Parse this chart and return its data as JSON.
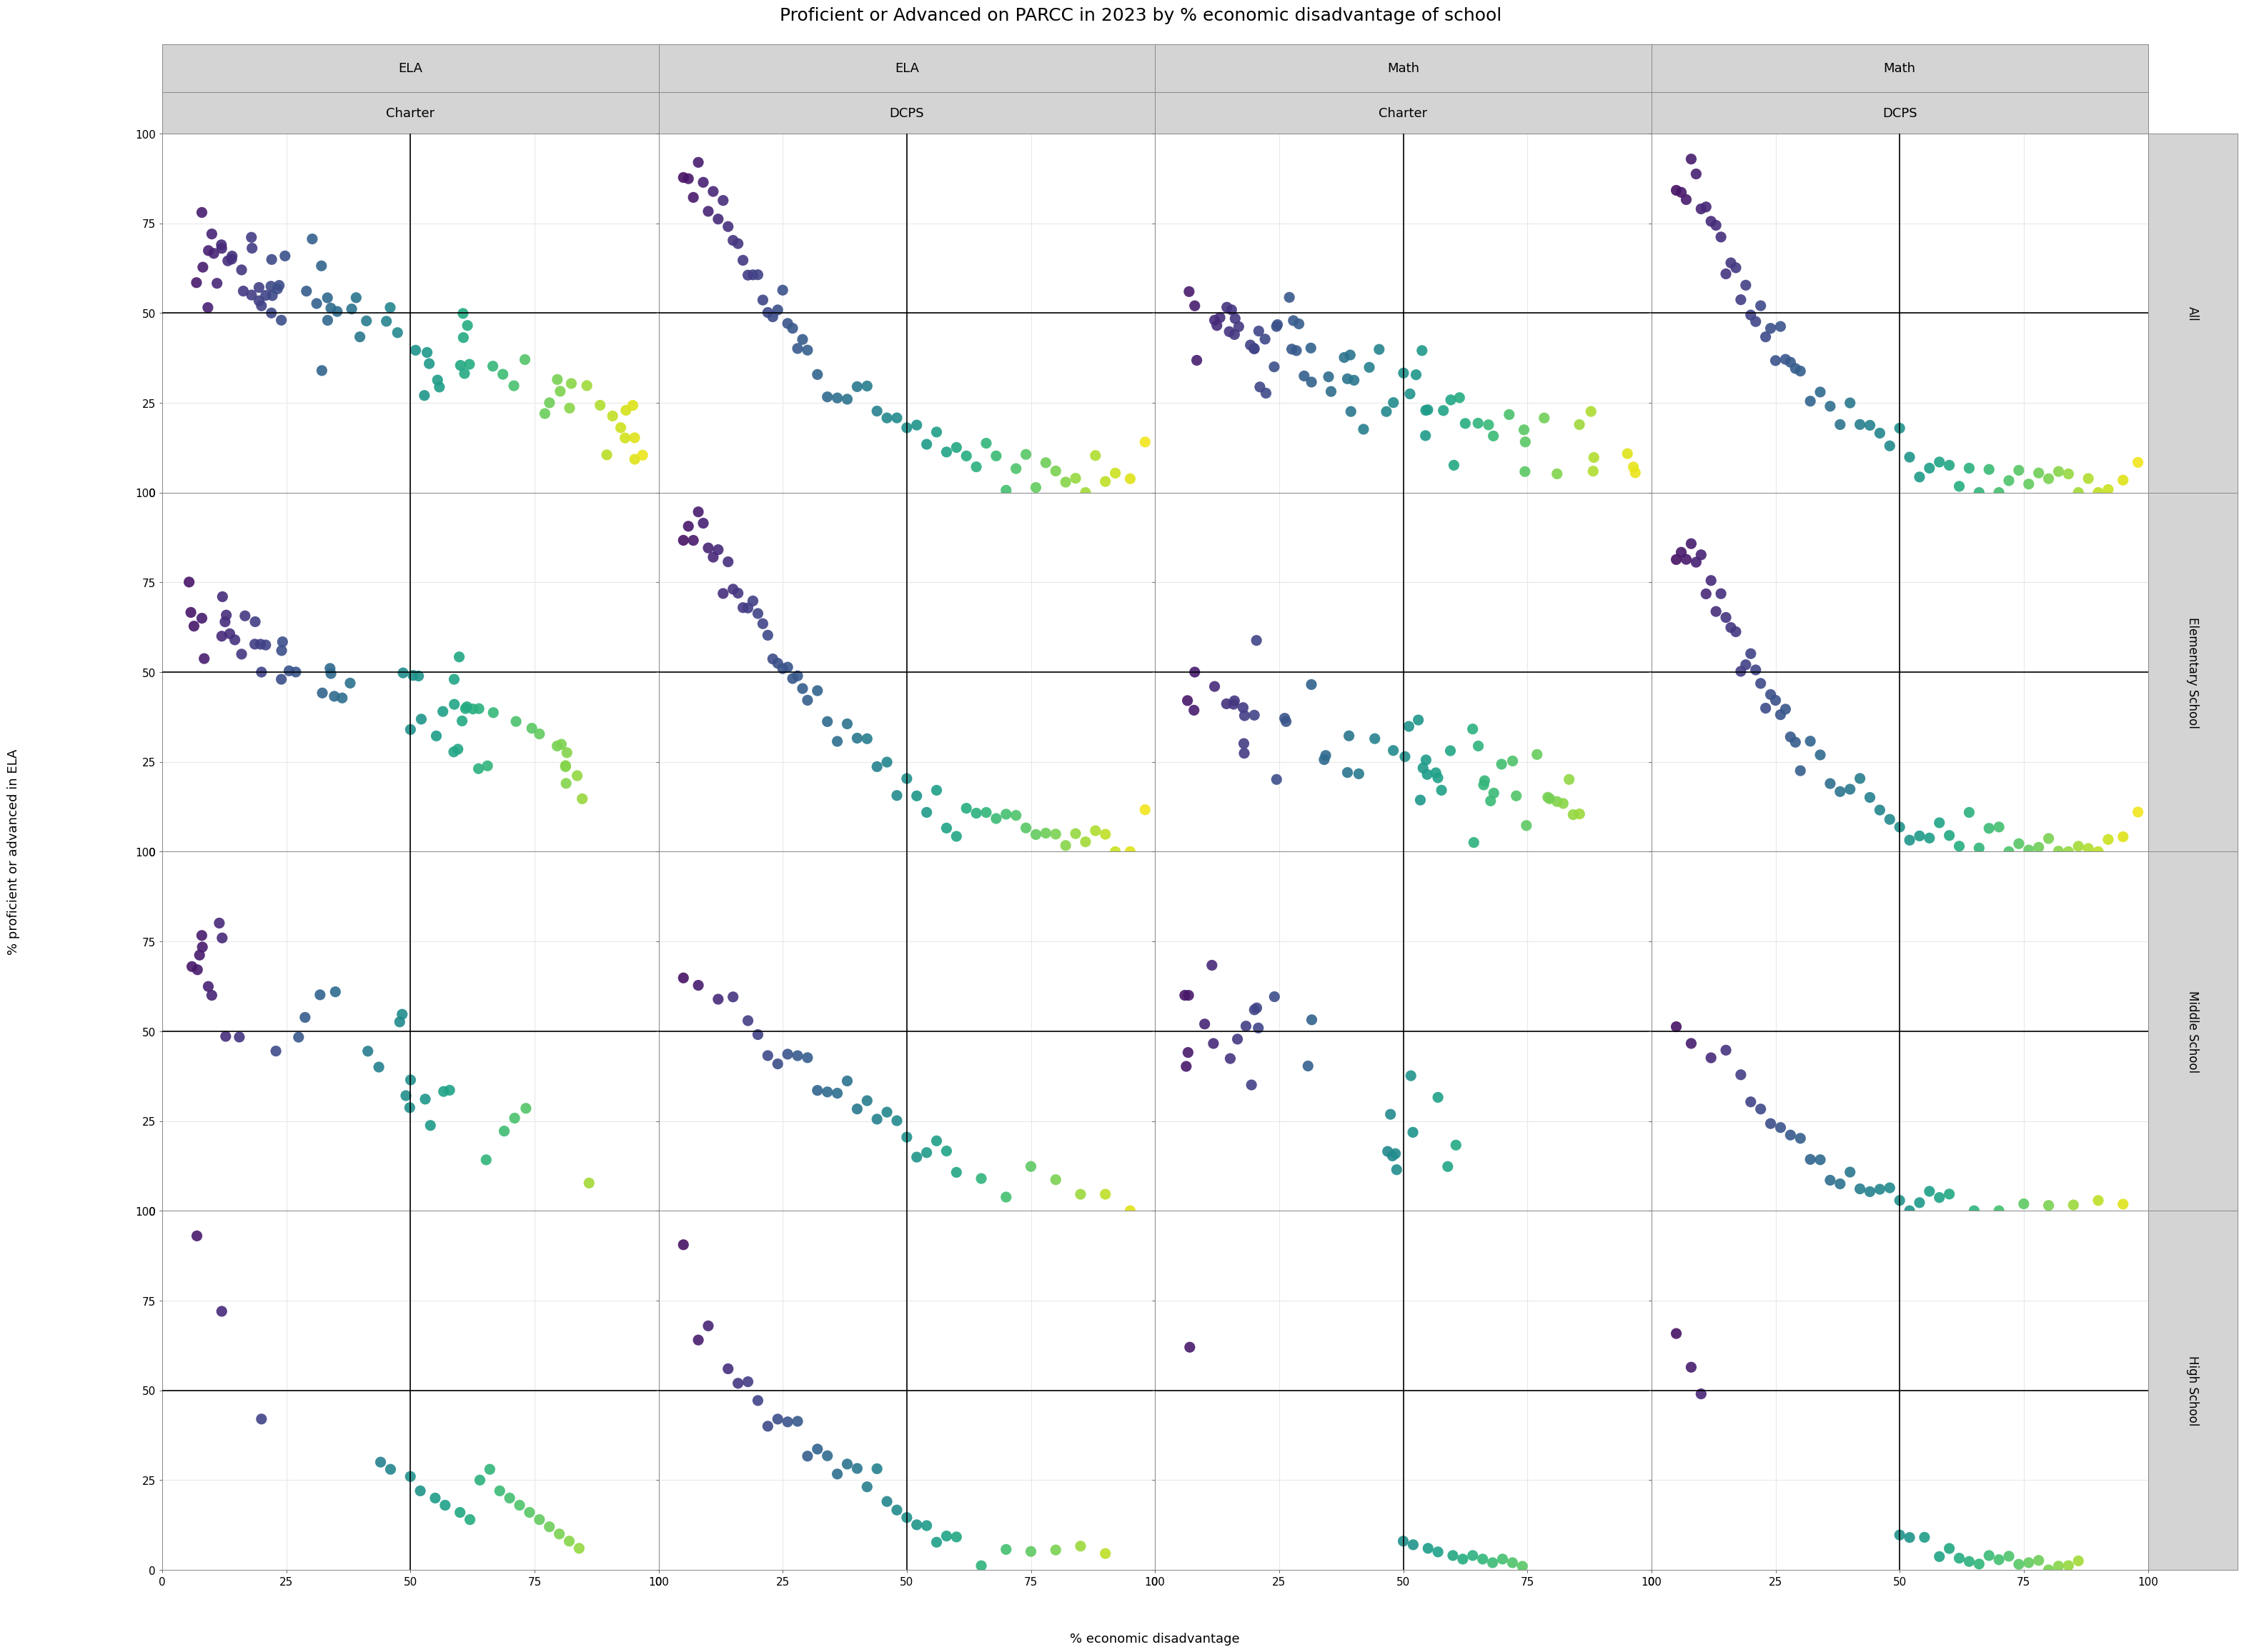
{
  "title": "Proficient or Advanced on PARCC in 2023 by % economic disadvantage of school",
  "xlabel": "% economic disadvantage",
  "ylabel": "% proficient or advanced in ELA",
  "col_labels_top": [
    "ELA",
    "ELA",
    "Math",
    "Math"
  ],
  "col_labels_mid": [
    "Charter",
    "DCPS",
    "Charter",
    "DCPS"
  ],
  "row_labels": [
    "All",
    "Elementary School",
    "Middle School",
    "High School"
  ],
  "xlim": [
    0,
    100
  ],
  "ylim": [
    0,
    100
  ],
  "xticks": [
    0,
    25,
    50,
    75,
    100
  ],
  "yticks": [
    0,
    25,
    50,
    75,
    100
  ],
  "hline_y": 50,
  "vline_x": 50,
  "panel_bg": "#ffffff",
  "strip_bg": "#d4d4d4",
  "grid_color": "#e8e8e8",
  "cmap": "viridis",
  "marker_size": 120,
  "marker_alpha": 0.9,
  "title_fontsize": 18,
  "strip_fontsize": 13,
  "tick_fontsize": 11,
  "axis_label_fontsize": 13
}
